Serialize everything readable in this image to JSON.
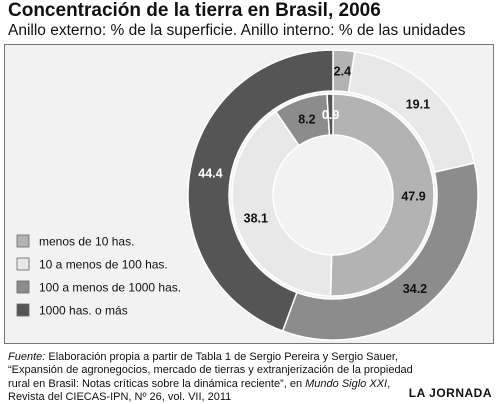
{
  "title": "Concentración de la tierra en Brasil, 2006",
  "subtitle": "Anillo externo: % de la superficie. Anillo interno: % de las unidades",
  "chart_data": {
    "type": "pie",
    "title": "Concentración de la tierra en Brasil, 2006",
    "subtitle": "Anillo externo: % de la superficie. Anillo interno: % de las unidades",
    "categories": [
      "menos de 10 has.",
      "10 a menos de 100 has.",
      "100 a menos de 1000 has.",
      "1000 has. o más"
    ],
    "colors": [
      "#b3b3b3",
      "#e8e8e8",
      "#8c8c8c",
      "#555555"
    ],
    "series": [
      {
        "ring": "outer",
        "values": [
          2.4,
          19.1,
          34.2,
          44.4
        ],
        "labels": [
          "2.4",
          "19.1",
          "34.2",
          "44.4"
        ]
      },
      {
        "ring": "inner",
        "values": [
          47.9,
          38.1,
          8.2,
          0.9
        ],
        "labels": [
          "47.9",
          "38.1",
          "8.2",
          "0.9"
        ]
      }
    ],
    "legend": "left"
  },
  "source": {
    "label": "Fuente:",
    "text1": "Elaboración propia a partir de Tabla 1 de Sergio Pereira y Sergio Sauer, “Expansión de agronegocios, mercado de tierras y extranjerización de la propiedad rural en Brasil: Notas críticas sobre la dinámica reciente”, en",
    "journal": "Mundo Siglo XXI",
    "text2": ", Revista del CIECAS-IPN, Nº 26, vol. VII, 2011"
  },
  "brand": "LA JORNADA"
}
